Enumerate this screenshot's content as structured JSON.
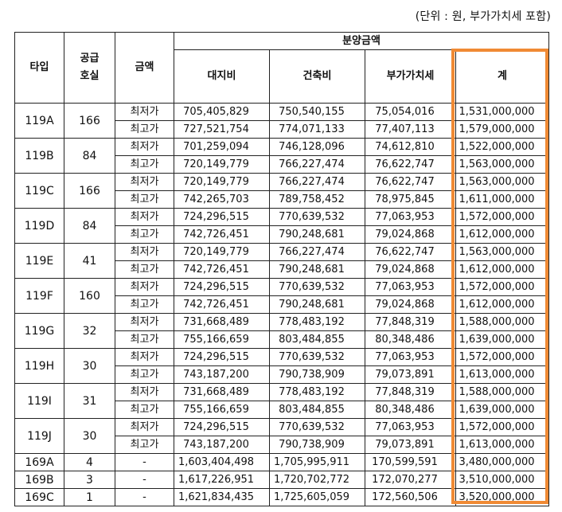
{
  "unit_note": "(단위 : 원, 부가가치세 포함)",
  "headers": {
    "type": "타입",
    "supply_1": "공급",
    "supply_2": "호실",
    "amount": "금액",
    "price_group": "분양금액",
    "land": "대지비",
    "building": "건축비",
    "vat": "부가가치세",
    "total": "계"
  },
  "highlight_color": "#f08a34",
  "groups": [
    {
      "type": "119A",
      "supply": "166",
      "rows": [
        {
          "kind": "최저가",
          "land": "705,405,829",
          "building": "750,540,155",
          "vat": "75,054,016",
          "total": "1,531,000,000"
        },
        {
          "kind": "최고가",
          "land": "727,521,754",
          "building": "774,071,133",
          "vat": "77,407,113",
          "total": "1,579,000,000"
        }
      ]
    },
    {
      "type": "119B",
      "supply": "84",
      "rows": [
        {
          "kind": "최저가",
          "land": "701,259,094",
          "building": "746,128,096",
          "vat": "74,612,810",
          "total": "1,522,000,000"
        },
        {
          "kind": "최고가",
          "land": "720,149,779",
          "building": "766,227,474",
          "vat": "76,622,747",
          "total": "1,563,000,000"
        }
      ]
    },
    {
      "type": "119C",
      "supply": "166",
      "rows": [
        {
          "kind": "최저가",
          "land": "720,149,779",
          "building": "766,227,474",
          "vat": "76,622,747",
          "total": "1,563,000,000"
        },
        {
          "kind": "최고가",
          "land": "742,265,703",
          "building": "789,758,452",
          "vat": "78,975,845",
          "total": "1,611,000,000"
        }
      ]
    },
    {
      "type": "119D",
      "supply": "84",
      "rows": [
        {
          "kind": "최저가",
          "land": "724,296,515",
          "building": "770,639,532",
          "vat": "77,063,953",
          "total": "1,572,000,000"
        },
        {
          "kind": "최고가",
          "land": "742,726,451",
          "building": "790,248,681",
          "vat": "79,024,868",
          "total": "1,612,000,000"
        }
      ]
    },
    {
      "type": "119E",
      "supply": "41",
      "rows": [
        {
          "kind": "최저가",
          "land": "720,149,779",
          "building": "766,227,474",
          "vat": "76,622,747",
          "total": "1,563,000,000"
        },
        {
          "kind": "최고가",
          "land": "742,726,451",
          "building": "790,248,681",
          "vat": "79,024,868",
          "total": "1,612,000,000"
        }
      ]
    },
    {
      "type": "119F",
      "supply": "160",
      "rows": [
        {
          "kind": "최저가",
          "land": "724,296,515",
          "building": "770,639,532",
          "vat": "77,063,953",
          "total": "1,572,000,000"
        },
        {
          "kind": "최고가",
          "land": "742,726,451",
          "building": "790,248,681",
          "vat": "79,024,868",
          "total": "1,612,000,000"
        }
      ]
    },
    {
      "type": "119G",
      "supply": "32",
      "rows": [
        {
          "kind": "최저가",
          "land": "731,668,489",
          "building": "778,483,192",
          "vat": "77,848,319",
          "total": "1,588,000,000"
        },
        {
          "kind": "최고가",
          "land": "755,166,659",
          "building": "803,484,855",
          "vat": "80,348,486",
          "total": "1,639,000,000"
        }
      ]
    },
    {
      "type": "119H",
      "supply": "30",
      "rows": [
        {
          "kind": "최저가",
          "land": "724,296,515",
          "building": "770,639,532",
          "vat": "77,063,953",
          "total": "1,572,000,000"
        },
        {
          "kind": "최고가",
          "land": "743,187,200",
          "building": "790,738,909",
          "vat": "79,073,891",
          "total": "1,613,000,000"
        }
      ]
    },
    {
      "type": "119I",
      "supply": "31",
      "rows": [
        {
          "kind": "최저가",
          "land": "731,668,489",
          "building": "778,483,192",
          "vat": "77,848,319",
          "total": "1,588,000,000"
        },
        {
          "kind": "최고가",
          "land": "755,166,659",
          "building": "803,484,855",
          "vat": "80,348,486",
          "total": "1,639,000,000"
        }
      ]
    },
    {
      "type": "119J",
      "supply": "30",
      "rows": [
        {
          "kind": "최저가",
          "land": "724,296,515",
          "building": "770,639,532",
          "vat": "77,063,953",
          "total": "1,572,000,000"
        },
        {
          "kind": "최고가",
          "land": "743,187,200",
          "building": "790,738,909",
          "vat": "79,073,891",
          "total": "1,613,000,000"
        }
      ]
    },
    {
      "type": "169A",
      "supply": "4",
      "rows": [
        {
          "kind": "-",
          "land": "1,603,404,498",
          "building": "1,705,995,911",
          "vat": "170,599,591",
          "total": "3,480,000,000"
        }
      ]
    },
    {
      "type": "169B",
      "supply": "3",
      "rows": [
        {
          "kind": "-",
          "land": "1,617,226,951",
          "building": "1,720,702,772",
          "vat": "172,070,277",
          "total": "3,510,000,000"
        }
      ]
    },
    {
      "type": "169C",
      "supply": "1",
      "rows": [
        {
          "kind": "-",
          "land": "1,621,834,435",
          "building": "1,725,605,059",
          "vat": "172,560,506",
          "total": "3,520,000,000"
        }
      ]
    }
  ]
}
